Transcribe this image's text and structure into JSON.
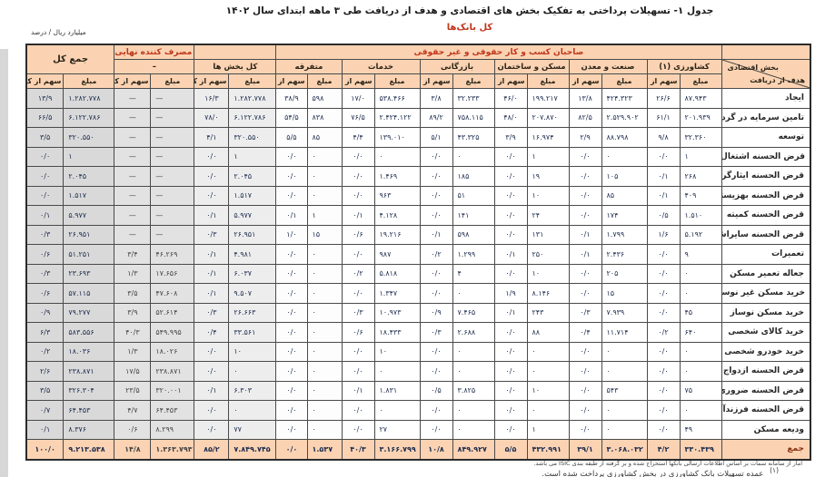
{
  "title": "جدول ۱- تسهیلات پرداختی به تفکیک بخش های اقتصادی و هدف از دریافت طی ۳ ماهه ابتدای سال ۱۴۰۲",
  "subtitle": "کل بانک‌ها",
  "unit_label": "میلیارد ریال / درصد",
  "header": {
    "owners_band": "صاحبان کسب و کار حقوقی و غیر حقوقی",
    "corner_top": "بخش اقتصادی",
    "corner_bottom": "هدف از دریافت",
    "amount_label": "مبلغ",
    "share_label": "سهم از کل",
    "household_sub": "–"
  },
  "groups": [
    {
      "name": "کشاورزی (۱)"
    },
    {
      "name": "صنعت و معدن"
    },
    {
      "name": "مسکن و ساختمان"
    },
    {
      "name": "بازرگانی"
    },
    {
      "name": "خدمات"
    },
    {
      "name": "متفرقه"
    },
    {
      "name": "کل بخش ها"
    },
    {
      "name": "مصرف کننده نهایی (خانوار)"
    },
    {
      "name": "جمع کل"
    }
  ],
  "chart_data": {
    "type": "table",
    "unit": "میلیارد ریال / درصد",
    "column_groups_rtl": [
      "کشاورزی (۱)",
      "صنعت و معدن",
      "مسکن و ساختمان",
      "بازرگانی",
      "خدمات",
      "متفرقه",
      "کل بخش ها",
      "مصرف کننده نهایی (خانوار)",
      "جمع کل"
    ],
    "subcolumns": [
      "مبلغ",
      "سهم از کل"
    ]
  },
  "table": {
    "rows": [
      {
        "label": "ایجاد",
        "c": [
          "۸۷.۹۴۳",
          "۲۶/۶",
          "۴۲۴.۳۲۳",
          "۱۳/۸",
          "۱۹۹.۲۱۷",
          "۴۶/۰",
          "۳۲.۲۳۳",
          "۳/۸",
          "۵۳۸.۴۶۶",
          "۱۷/۰",
          "۵۹۸",
          "۳۸/۹",
          "۱.۲۸۲.۷۷۸",
          "۱۶/۳",
          "—",
          "—",
          "۱.۲۸۲.۷۷۸",
          "۱۳/۹"
        ]
      },
      {
        "label": "تامین سرمایه در گردش",
        "c": [
          "۲۰۱.۹۳۹",
          "۶۱/۱",
          "۲.۵۲۹.۹۰۲",
          "۸۲/۵",
          "۲۰۷.۸۷۰",
          "۴۸/۰",
          "۷۵۸.۱۱۵",
          "۸۹/۲",
          "۲.۴۲۴.۱۲۲",
          "۷۶/۵",
          "۸۳۸",
          "۵۴/۵",
          "۶.۱۲۲.۷۸۶",
          "۷۸/۰",
          "—",
          "—",
          "۶.۱۲۲.۷۸۶",
          "۶۶/۵"
        ]
      },
      {
        "label": "توسعه",
        "c": [
          "۳۲.۳۶۰",
          "۹/۸",
          "۸۸.۷۹۸",
          "۲/۹",
          "۱۶.۹۷۴",
          "۳/۹",
          "۴۳.۳۲۵",
          "۵/۱",
          "۱۳۹.۰۱۰",
          "۴/۴",
          "۸۵",
          "۵/۵",
          "۳۲۰.۵۵۰",
          "۴/۱",
          "—",
          "—",
          "۳۲۰.۵۵۰",
          "۳/۵"
        ]
      },
      {
        "label": "قرض الحسنه اشتغال",
        "c": [
          "۱",
          "۰/۰",
          "۰",
          "۰/۰",
          "۱",
          "۰/۰",
          "۰",
          "۰/۰",
          "۰",
          "۰/۰",
          "۰",
          "۰/۰",
          "۱",
          "۰/۰",
          "—",
          "—",
          "۱",
          "۰/۰"
        ]
      },
      {
        "label": "قرض الحسنه ایثارگران",
        "c": [
          "۲۶۸",
          "۰/۱",
          "۱۰۵",
          "۰/۰",
          "۱۹",
          "۰/۰",
          "۱۸۵",
          "۰/۰",
          "۱.۴۶۹",
          "۰/۰",
          "۰",
          "۰/۰",
          "۲.۰۴۵",
          "۰/۰",
          "—",
          "—",
          "۲.۰۴۵",
          "۰/۰"
        ]
      },
      {
        "label": "قرض الحسنه بهزیستی",
        "c": [
          "۴۰۹",
          "۰/۱",
          "۸۵",
          "۰/۰",
          "۱۰",
          "۰/۰",
          "۵۱",
          "۰/۰",
          "۹۶۳",
          "۰/۰",
          "۰",
          "۰/۰",
          "۱.۵۱۷",
          "۰/۰",
          "—",
          "—",
          "۱.۵۱۷",
          "۰/۰"
        ]
      },
      {
        "label": "قرض الحسنه کمیته",
        "c": [
          "۱.۵۱۰",
          "۰/۵",
          "۱۷۴",
          "۰/۰",
          "۲۴",
          "۰/۰",
          "۱۴۱",
          "۰/۰",
          "۴.۱۲۸",
          "۰/۱",
          "۱",
          "۰/۱",
          "۵.۹۷۷",
          "۰/۱",
          "—",
          "—",
          "۵.۹۷۷",
          "۰/۱"
        ]
      },
      {
        "label": "قرض الحسنه سایراشتغال",
        "c": [
          "۵.۱۹۲",
          "۱/۶",
          "۱.۷۹۹",
          "۰/۱",
          "۱۳۱",
          "۰/۰",
          "۵۹۸",
          "۰/۱",
          "۱۹.۲۱۶",
          "۰/۶",
          "۱۵",
          "۱/۰",
          "۲۶.۹۵۱",
          "۰/۳",
          "—",
          "—",
          "۲۶.۹۵۱",
          "۰/۳"
        ]
      },
      {
        "label": "تعمیرات",
        "c": [
          "۹",
          "۰/۰",
          "۲.۴۳۶",
          "۰/۱",
          "۲۵۰",
          "۰/۱",
          "۱.۲۹۹",
          "۰/۲",
          "۹۸۷",
          "۰/۰",
          "۰",
          "۰/۰",
          "۴.۹۸۱",
          "۰/۱",
          "۴۶.۲۶۹",
          "۳/۴",
          "۵۱.۲۵۱",
          "۰/۶"
        ]
      },
      {
        "label": "جعاله تعمیر مسکن",
        "c": [
          "۰",
          "۰/۰",
          "۲۰۵",
          "۰/۰",
          "۱۰",
          "۰/۰",
          "۴",
          "۰/۰",
          "۵.۸۱۸",
          "۰/۲",
          "۰",
          "۰/۰",
          "۶.۰۳۷",
          "۰/۱",
          "۱۷.۶۵۶",
          "۱/۳",
          "۲۳.۶۹۳",
          "۰/۳"
        ]
      },
      {
        "label": "خرید مسکن غیر نوساز",
        "c": [
          "۰",
          "۰/۰",
          "۱۵",
          "۰/۰",
          "۸.۱۴۶",
          "۱/۹",
          "۰",
          "۰/۰",
          "۱.۳۴۷",
          "۰/۰",
          "۰",
          "۰/۰",
          "۹.۵۰۷",
          "۰/۱",
          "۴۷.۶۰۸",
          "۳/۵",
          "۵۷.۱۱۵",
          "۰/۶"
        ]
      },
      {
        "label": "خرید مسکن نوساز",
        "c": [
          "۴۵",
          "۰/۰",
          "۷.۹۳۹",
          "۰/۳",
          "۲۴۳",
          "۰/۱",
          "۷.۴۶۵",
          "۰/۹",
          "۱۰.۹۷۳",
          "۰/۳",
          "۰",
          "۰/۰",
          "۲۶.۶۶۳",
          "۰/۳",
          "۵۲.۶۱۴",
          "۳/۹",
          "۷۹.۲۷۷",
          "۰/۹"
        ]
      },
      {
        "label": "خرید کالای شخصی",
        "c": [
          "۶۴۰",
          "۰/۲",
          "۱۱.۷۱۴",
          "۰/۴",
          "۸۸",
          "۰/۰",
          "۲.۶۸۸",
          "۰/۳",
          "۱۸.۴۳۳",
          "۰/۶",
          "۰",
          "۰/۰",
          "۳۳.۵۶۱",
          "۰/۴",
          "۵۴۹.۹۹۵",
          "۴۰/۳",
          "۵۸۳.۵۵۶",
          "۶/۳"
        ]
      },
      {
        "label": "خرید خودرو شخصی",
        "c": [
          "۰",
          "۰/۰",
          "۰",
          "۰/۰",
          "۰",
          "۰/۰",
          "۰",
          "۰/۰",
          "۱۰",
          "۰/۰",
          "۰",
          "۰/۰",
          "۱۰",
          "۰/۰",
          "۱۸.۰۲۶",
          "۱/۳",
          "۱۸.۰۳۶",
          "۰/۲"
        ]
      },
      {
        "label": "قرض الحسنه ازدواج",
        "c": [
          "۰",
          "۰/۰",
          "۰",
          "۰/۰",
          "۰",
          "۰/۰",
          "۰",
          "۰/۰",
          "۰",
          "۰/۰",
          "۰",
          "۰/۰",
          "۰",
          "۰/۰",
          "۲۳۸.۸۷۱",
          "۱۷/۵",
          "۲۳۸.۸۷۱",
          "۲/۶"
        ]
      },
      {
        "label": "قرض الحسنه ضروری",
        "c": [
          "۷۵",
          "۰/۰",
          "۵۴۳",
          "۰/۰",
          "۱۰",
          "۰/۰",
          "۳.۸۲۵",
          "۰/۵",
          "۱.۸۳۱",
          "۰/۱",
          "۰",
          "۰/۰",
          "۶.۳۰۳",
          "۰/۱",
          "۳۲۰.۰۰۱",
          "۲۳/۵",
          "۳۲۶.۳۰۴",
          "۳/۵"
        ]
      },
      {
        "label": "قرض الحسنه فرزندآوری",
        "c": [
          "۰",
          "۰/۰",
          "۰",
          "۰/۰",
          "۰",
          "۰/۰",
          "۰",
          "۰/۰",
          "۰",
          "۰/۰",
          "۰",
          "۰/۰",
          "۰",
          "۰/۰",
          "۶۴.۴۵۳",
          "۴/۷",
          "۶۴.۴۵۳",
          "۰/۷"
        ]
      },
      {
        "label": "ودیعه مسکن",
        "c": [
          "۴۹",
          "۰/۰",
          "۰",
          "۰/۰",
          "۱",
          "۰/۰",
          "۰",
          "۰/۰",
          "۲۷",
          "۰/۰",
          "۰",
          "۰/۰",
          "۷۷",
          "۰/۰",
          "۸.۲۹۹",
          "۰/۶",
          "۸.۳۷۶",
          "۰/۱"
        ]
      },
      {
        "label": "جمع",
        "total": true,
        "c": [
          "۳۳۰.۴۳۹",
          "۴/۲",
          "۳.۰۶۸.۰۳۲",
          "۳۹/۱",
          "۴۳۲.۹۹۱",
          "۵/۵",
          "۸۴۹.۹۲۷",
          "۱۰/۸",
          "۳.۱۶۶.۷۹۹",
          "۴۰/۳",
          "۱.۵۳۷",
          "۰/۰",
          "۷.۸۴۹.۷۴۵",
          "۸۵/۲",
          "۱.۳۶۳.۷۹۳",
          "۱۴/۸",
          "۹.۲۱۳.۵۳۸",
          "۱۰۰/۰"
        ]
      }
    ]
  },
  "footnotes": {
    "source_note": "آمار از سامانه سمات بر اساس اطلاعات ارسالی بانکها استخراج شده و بر گرفته از طبقه بندی ISIC می باشد.",
    "mark": "(۱)",
    "note1": "عمده تسهیلات بانک کشاورزی در بخش کشاورزی پرداخت شده است."
  }
}
